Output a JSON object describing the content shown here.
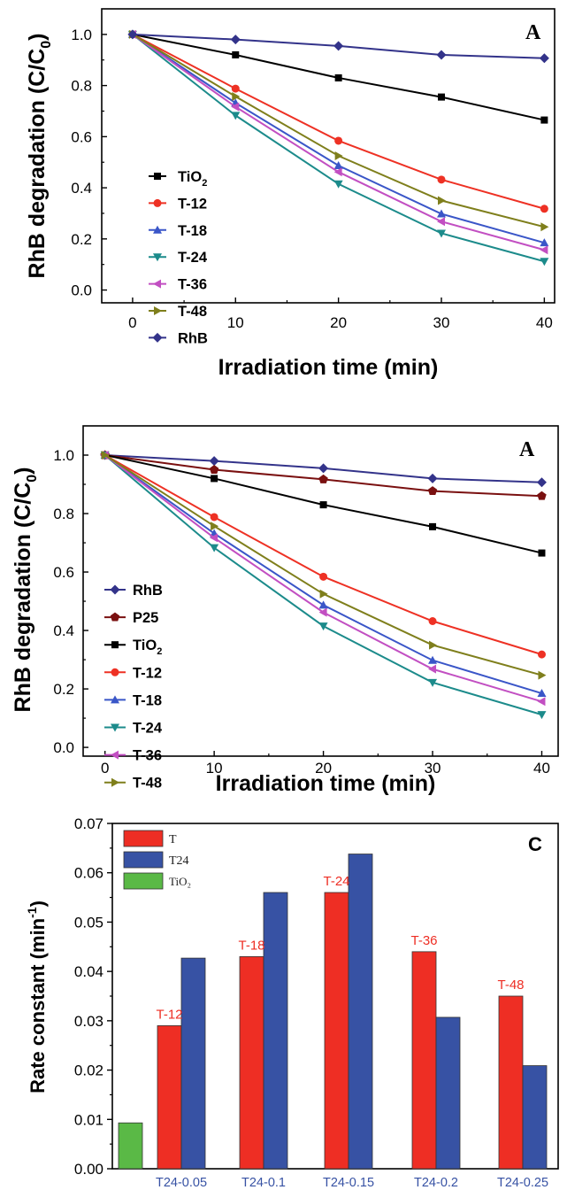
{
  "chart_data": [
    {
      "type": "line",
      "panel_label": "A",
      "ylabel_main": "RhB degradation (C/C",
      "ylabel_sub": "0",
      "ylabel_close": ")",
      "xlabel": "Irradiation time (min)",
      "x": [
        0,
        10,
        20,
        30,
        40
      ],
      "xlim": [
        -3,
        41
      ],
      "ylim": [
        -0.05,
        1.1
      ],
      "xticks": [
        "0",
        "10",
        "20",
        "30",
        "40"
      ],
      "yticks": [
        "0.0",
        "0.2",
        "0.4",
        "0.6",
        "0.8",
        "1.0"
      ],
      "legend_position": "left",
      "series": [
        {
          "name": "TiO",
          "sub": "2",
          "color": "#000000",
          "marker": "square",
          "values": [
            1.0,
            0.92,
            0.83,
            0.755,
            0.665
          ]
        },
        {
          "name": "T-12",
          "sub": "",
          "color": "#ee3124",
          "marker": "circle",
          "values": [
            1.0,
            0.788,
            0.584,
            0.432,
            0.318
          ]
        },
        {
          "name": "T-18",
          "sub": "",
          "color": "#3a56c8",
          "marker": "triangle-up",
          "values": [
            1.0,
            0.732,
            0.487,
            0.298,
            0.185
          ]
        },
        {
          "name": "T-24",
          "sub": "",
          "color": "#1c8b8b",
          "marker": "triangle-down",
          "values": [
            1.0,
            0.683,
            0.415,
            0.222,
            0.112
          ]
        },
        {
          "name": "T-36",
          "sub": "",
          "color": "#c24fc2",
          "marker": "triangle-left",
          "values": [
            1.0,
            0.717,
            0.462,
            0.268,
            0.157
          ]
        },
        {
          "name": "T-48",
          "sub": "",
          "color": "#7f7f1c",
          "marker": "triangle-right",
          "values": [
            1.0,
            0.757,
            0.525,
            0.35,
            0.247
          ]
        },
        {
          "name": "RhB",
          "sub": "",
          "color": "#33338a",
          "marker": "diamond",
          "values": [
            1.0,
            0.98,
            0.955,
            0.92,
            0.907
          ]
        }
      ]
    },
    {
      "type": "line",
      "panel_label": "A",
      "ylabel_main": "RhB degradation (C/C",
      "ylabel_sub": "0",
      "ylabel_close": ")",
      "xlabel": "Irradiation time (min)",
      "x": [
        0,
        10,
        20,
        30,
        40
      ],
      "xlim": [
        -2,
        41.5
      ],
      "ylim": [
        -0.03,
        1.1
      ],
      "xticks": [
        "0",
        "10",
        "20",
        "30",
        "40"
      ],
      "yticks": [
        "0.0",
        "0.2",
        "0.4",
        "0.6",
        "0.8",
        "1.0"
      ],
      "legend_position": "left",
      "series": [
        {
          "name": "RhB",
          "sub": "",
          "color": "#33338a",
          "marker": "diamond",
          "values": [
            1.0,
            0.98,
            0.955,
            0.92,
            0.907
          ]
        },
        {
          "name": "P25",
          "sub": "",
          "color": "#7a1010",
          "marker": "pentagon",
          "values": [
            1.0,
            0.95,
            0.917,
            0.877,
            0.86
          ]
        },
        {
          "name": "TiO",
          "sub": "2",
          "color": "#000000",
          "marker": "square",
          "values": [
            1.0,
            0.92,
            0.83,
            0.755,
            0.665
          ]
        },
        {
          "name": "T-12",
          "sub": "",
          "color": "#ee3124",
          "marker": "circle",
          "values": [
            1.0,
            0.788,
            0.584,
            0.432,
            0.318
          ]
        },
        {
          "name": "T-18",
          "sub": "",
          "color": "#3a56c8",
          "marker": "triangle-up",
          "values": [
            1.0,
            0.732,
            0.487,
            0.298,
            0.185
          ]
        },
        {
          "name": "T-24",
          "sub": "",
          "color": "#1c8b8b",
          "marker": "triangle-down",
          "values": [
            1.0,
            0.683,
            0.415,
            0.222,
            0.112
          ]
        },
        {
          "name": "T-36",
          "sub": "",
          "color": "#c24fc2",
          "marker": "triangle-left",
          "values": [
            1.0,
            0.717,
            0.462,
            0.268,
            0.157
          ]
        },
        {
          "name": "T-48",
          "sub": "",
          "color": "#7f7f1c",
          "marker": "triangle-right",
          "values": [
            1.0,
            0.757,
            0.525,
            0.35,
            0.247
          ]
        }
      ]
    },
    {
      "type": "bar",
      "panel_label": "C",
      "ylabel_main": "Rate constant (min",
      "ylabel_sup": "-1",
      "ylabel_close": ")",
      "ylim": [
        0,
        0.07
      ],
      "yticks": [
        "0.00",
        "0.01",
        "0.02",
        "0.03",
        "0.04",
        "0.05",
        "0.06",
        "0.07"
      ],
      "categories": [
        "",
        "T24-0.05",
        "T24-0.1",
        "T24-0.15",
        "T24-0.2",
        "T24-0.25"
      ],
      "legend_position": "top-left",
      "series": [
        {
          "name": "T",
          "color": "#ee2e24",
          "values": [
            null,
            0.029,
            0.043,
            0.056,
            0.044,
            0.035
          ],
          "labels": [
            "",
            "T-12",
            "T-18",
            "T-24",
            "T-36",
            "T-48"
          ]
        },
        {
          "name": "T24",
          "color": "#3752a4",
          "values": [
            null,
            0.0427,
            0.056,
            0.0638,
            0.0307,
            0.0209
          ]
        },
        {
          "name": "TiO₂",
          "color": "#5ab946",
          "values": [
            0.0093,
            null,
            null,
            null,
            null,
            null
          ]
        }
      ],
      "category_label_color": "#3752a4",
      "bar_label_color": "#ee2e24"
    }
  ]
}
